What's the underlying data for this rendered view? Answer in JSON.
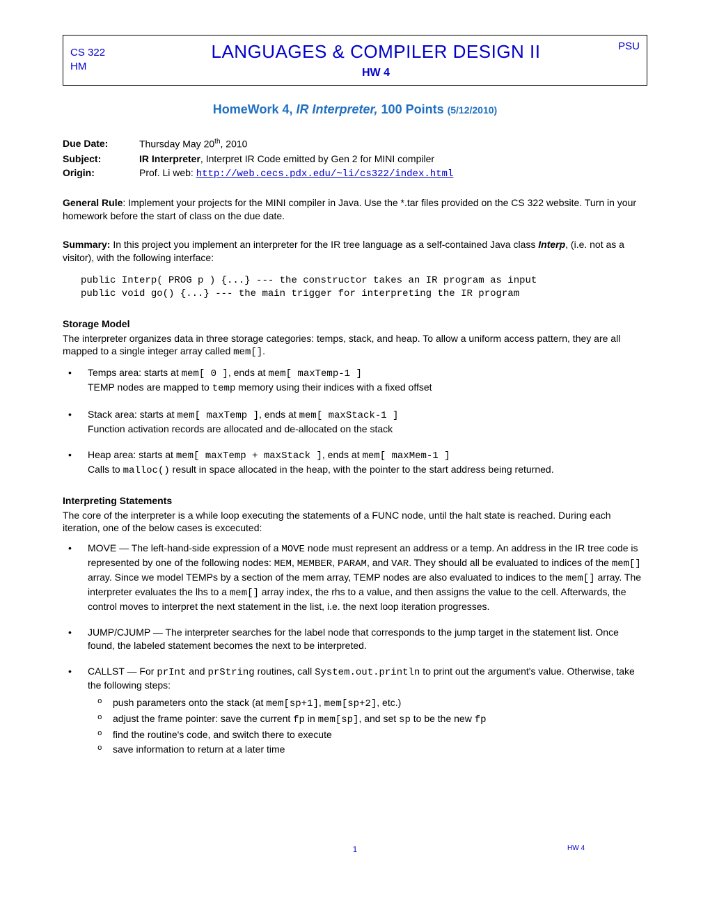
{
  "header": {
    "cs": "CS 322",
    "hm": "HM",
    "title": "LANGUAGES & COMPILER DESIGN II",
    "hw": "HW 4",
    "psu": "PSU"
  },
  "main_title": {
    "prefix": "HomeWork 4, ",
    "italic": "IR Interpreter,",
    "suffix": " 100 Points ",
    "date": "(5/12/2010)"
  },
  "meta": {
    "due_label": "Due Date:",
    "due_value_pre": "Thursday May 20",
    "due_value_sup": "th",
    "due_value_post": ", 2010",
    "subject_label": "Subject:",
    "subject_bold": "IR Interpreter",
    "subject_rest": ", Interpret IR Code emitted by Gen 2 for MINI compiler",
    "origin_label": "Origin:",
    "origin_pre": "Prof. Li web: ",
    "origin_url": "http://web.cecs.pdx.edu/~li/cs322/index.html"
  },
  "general_rule": {
    "label": "General Rule",
    "text": ": Implement your projects for the MINI compiler in Java. Use the *.tar files provided on the CS 322 website. Turn in your homework before the start of class on the due date."
  },
  "summary": {
    "label": "Summary:",
    "text1": " In this project you implement an interpreter for the IR tree language as a self-contained Java class ",
    "interp": "Interp",
    "text2": ", (i.e. not as a visitor), with the following interface:"
  },
  "code": "public Interp( PROG p ) {...} --- the constructor takes an IR program as input\npublic void go() {...} --- the main trigger for interpreting the IR program",
  "storage": {
    "head": "Storage Model",
    "intro_pre": "The interpreter organizes data in three storage categories: temps, stack, and heap. To allow a uniform access pattern, they are all mapped to a single integer array called ",
    "intro_mono": "mem[]",
    "intro_post": ".",
    "b1_pre": "Temps area: starts at ",
    "b1_m1": "mem[ 0 ]",
    "b1_mid": ", ends at ",
    "b1_m2": "mem[ maxTemp-1 ]",
    "b1_line2_pre": "TEMP nodes are mapped to ",
    "b1_line2_mono": "temp",
    "b1_line2_post": " memory using their indices with a fixed offset",
    "b2_pre": "Stack area: starts at ",
    "b2_m1": "mem[ maxTemp ]",
    "b2_mid": ", ends at ",
    "b2_m2": "mem[ maxStack-1 ]",
    "b2_line2": "Function activation records are allocated and de-allocated on the stack",
    "b3_pre": "Heap area: starts at ",
    "b3_m1": "mem[ maxTemp + maxStack ]",
    "b3_mid": ", ends at ",
    "b3_m2": "mem[ maxMem-1 ]",
    "b3_line2_pre": "Calls to ",
    "b3_line2_mono": "malloc()",
    "b3_line2_post": " result in space allocated in the heap, with the pointer to the start address being returned."
  },
  "interp_stmts": {
    "head": "Interpreting Statements",
    "intro": "The core of the interpreter is a while loop executing the statements of a FUNC node, until the halt state is reached. During each iteration, one of the below cases is excecuted:",
    "move_pre": "MOVE — The left-hand-side expression of a ",
    "move_m1": "MOVE",
    "move_mid1": " node must represent an address or a temp. An address in the IR tree code is represented by one of the following nodes: ",
    "move_m2": "MEM",
    "move_c1": ", ",
    "move_m3": "MEMBER",
    "move_c2": ", ",
    "move_m4": "PARAM",
    "move_c3": ", and ",
    "move_m5": "VAR",
    "move_mid2": ". They should all be evaluated to indices of the ",
    "move_m6": "mem[]",
    "move_mid3": " array. Since we model TEMPs by a section of the mem array, TEMP nodes are also evaluated to indices to the ",
    "move_m7": "mem[]",
    "move_mid4": " array. The interpreter evaluates the lhs to a ",
    "move_m8": "mem[]",
    "move_post": " array index, the rhs to a value, and then assigns the value to the cell. Afterwards, the control moves to interpret the next statement in the list, i.e. the next loop iteration progresses.",
    "jump": "JUMP/CJUMP — The interpreter searches for the label node that corresponds to the jump target in the statement list. Once found, the labeled statement becomes the next to be interpreted.",
    "call_pre": "CALLST — For ",
    "call_m1": "prInt",
    "call_mid1": " and ",
    "call_m2": "prString",
    "call_mid2": " routines, call ",
    "call_m3": "System.out.println",
    "call_post": " to print out the argument's value. Otherwise, take the following steps:",
    "sub1_pre": "push parameters onto the stack (at ",
    "sub1_m1": "mem[sp+1]",
    "sub1_mid": ", ",
    "sub1_m2": "mem[sp+2]",
    "sub1_post": ", etc.)",
    "sub2_pre": "adjust the frame pointer: save the current ",
    "sub2_m1": "fp",
    "sub2_mid1": " in ",
    "sub2_m2": "mem[sp]",
    "sub2_mid2": ", and set ",
    "sub2_m3": "sp",
    "sub2_mid3": " to be the new ",
    "sub2_m4": "fp",
    "sub3": "find the routine's code, and switch there to execute",
    "sub4": "save information to return at a later time"
  },
  "footer": {
    "page": "1",
    "tag": "HW 4"
  }
}
